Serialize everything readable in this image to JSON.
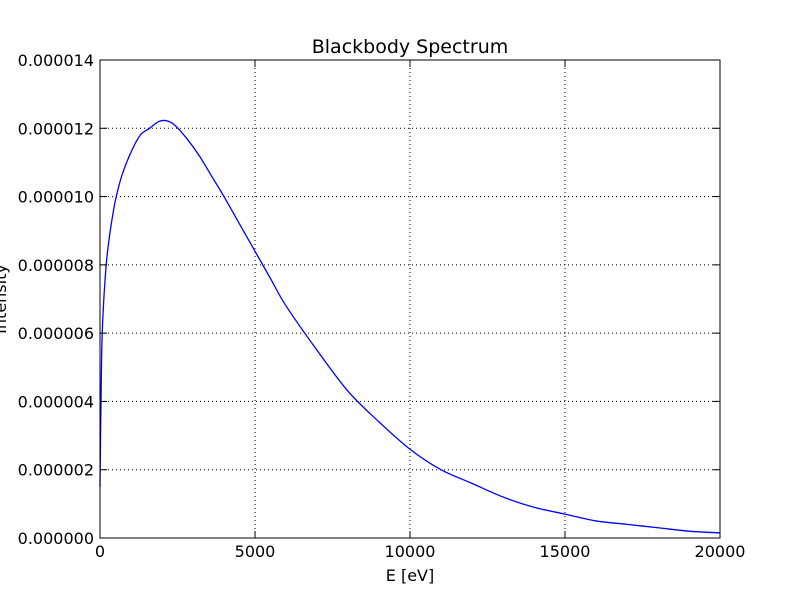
{
  "chart_data": {
    "type": "line",
    "title": "Blackbody Spectrum",
    "xlabel": "E [eV]",
    "ylabel": "Intensity",
    "xlim": [
      0,
      20000
    ],
    "ylim": [
      0,
      1.4e-05
    ],
    "x_ticks": [
      "0",
      "5000",
      "10000",
      "15000",
      "20000"
    ],
    "y_ticks": [
      "0.000000",
      "0.000002",
      "0.000004",
      "0.000006",
      "0.000008",
      "0.000010",
      "0.000012",
      "0.000014"
    ],
    "grid": true,
    "series": [
      {
        "color": "#0000ff",
        "x": [
          0,
          50,
          100,
          200,
          300,
          400,
          500,
          700,
          1000,
          1300,
          1600,
          1900,
          2150,
          2400,
          2800,
          3200,
          3600,
          4000,
          4500,
          5000,
          5500,
          6000,
          7000,
          8000,
          9000,
          10000,
          11000,
          12000,
          13000,
          14000,
          15000,
          16000,
          17000,
          18000,
          19000,
          20000
        ],
        "y": [
          1.5e-06,
          5.2e-06,
          6.6e-06,
          8e-06,
          8.8e-06,
          9.4e-06,
          9.9e-06,
          1.06e-05,
          1.13e-05,
          1.18e-05,
          1.2e-05,
          1.22e-05,
          1.222e-05,
          1.21e-05,
          1.17e-05,
          1.12e-05,
          1.06e-05,
          1e-05,
          9.2e-06,
          8.4e-06,
          7.6e-06,
          6.8e-06,
          5.5e-06,
          4.3e-06,
          3.4e-06,
          2.6e-06,
          2e-06,
          1.6e-06,
          1.2e-06,
          9e-07,
          7e-07,
          5e-07,
          4e-07,
          3e-07,
          2e-07,
          1.5e-07
        ]
      }
    ]
  }
}
